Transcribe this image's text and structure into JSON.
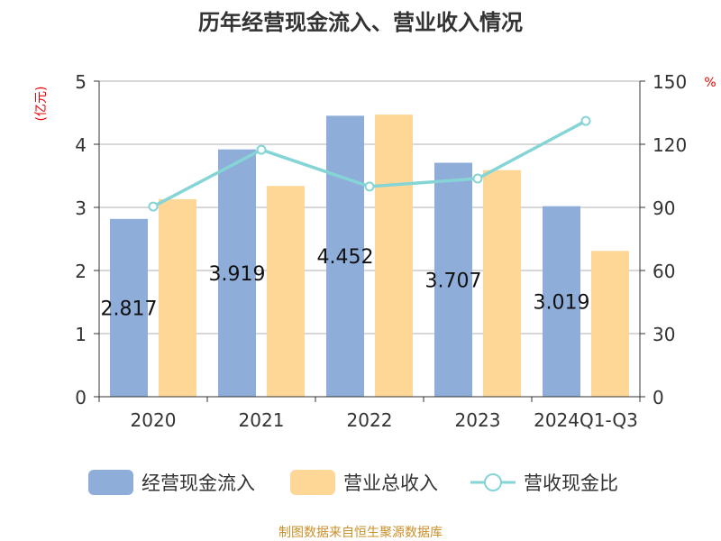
{
  "chart_data": {
    "type": "bar",
    "title": "历年经营现金流入、营业收入情况",
    "ylabel_left": "(亿元)",
    "ylabel_right": "%",
    "ylim_left": [
      0,
      5
    ],
    "ylim_right": [
      0,
      150
    ],
    "yticks_left": [
      "0",
      "1",
      "2",
      "3",
      "4",
      "5"
    ],
    "yticks_right": [
      "0",
      "30",
      "60",
      "90",
      "120",
      "150"
    ],
    "categories": [
      "2020",
      "2021",
      "2022",
      "2023",
      "2024Q1-Q3"
    ],
    "series": [
      {
        "name": "经营现金流入",
        "type": "bar",
        "axis": "left",
        "color": "#8eadd9",
        "values": [
          2.817,
          3.919,
          4.452,
          3.707,
          3.019
        ],
        "labels": [
          "2.817",
          "3.919",
          "4.452",
          "3.707",
          "3.019"
        ]
      },
      {
        "name": "营业总收入",
        "type": "bar",
        "axis": "left",
        "color": "#fed797",
        "values": [
          3.13,
          3.34,
          4.47,
          3.59,
          2.31
        ]
      },
      {
        "name": "营收现金比",
        "type": "line",
        "axis": "right",
        "color": "#85d4d6",
        "values": [
          90.4,
          117.4,
          99.9,
          103.7,
          131.1
        ]
      }
    ],
    "grid": true,
    "legend": "bottom",
    "source": "制图数据来自恒生聚源数据库"
  }
}
